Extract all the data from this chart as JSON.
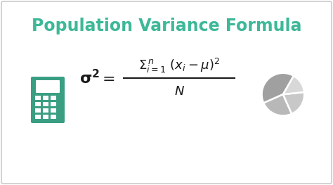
{
  "title": "Population Variance Formula",
  "title_color": "#3db898",
  "title_fontsize": 17,
  "title_fontweight": "bold",
  "bg_color": "#ffffff",
  "border_color": "#cccccc",
  "formula_color": "#1a1a1a",
  "calc_color": "#3a9e82",
  "pie_colors": [
    "#a0a0a0",
    "#b8b8b8",
    "#c8c8c8",
    "#d8d8d8"
  ],
  "fig_width": 4.74,
  "fig_height": 2.63,
  "dpi": 100
}
